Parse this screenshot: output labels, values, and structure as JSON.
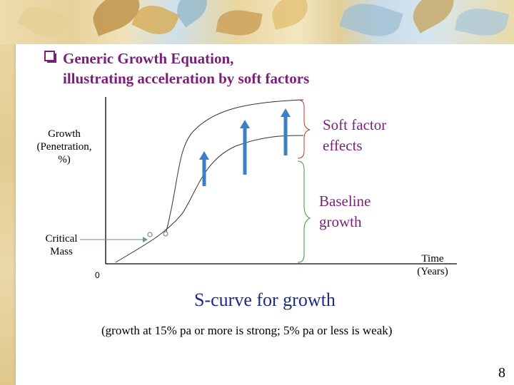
{
  "slide": {
    "title_line1": "Generic Growth Equation,",
    "title_line2": "illustrating acceleration by soft factors",
    "page_number": "8"
  },
  "diagram": {
    "y_axis_label_lines": [
      "Growth",
      "(Penetration,",
      "%)"
    ],
    "x_axis_label_lines": [
      "Time",
      "(Years)"
    ],
    "origin_label": "0",
    "critical_mass_lines": [
      "Critical",
      "Mass"
    ],
    "soft_factor_lines": [
      "Soft factor",
      "effects"
    ],
    "baseline_lines": [
      "Baseline",
      "growth"
    ],
    "caption": "S-curve for growth",
    "subcaption": "(growth at 15% pa or more is strong; 5% pa or less is weak)",
    "colors": {
      "title": "#7a1f78",
      "annotation": "#7a1f78",
      "caption": "#1a2a8a",
      "arrow": "#3b7fc4",
      "brace_soft": "#c0392b",
      "brace_baseline": "#3a9a3a",
      "point": "#6f8f9a"
    }
  }
}
